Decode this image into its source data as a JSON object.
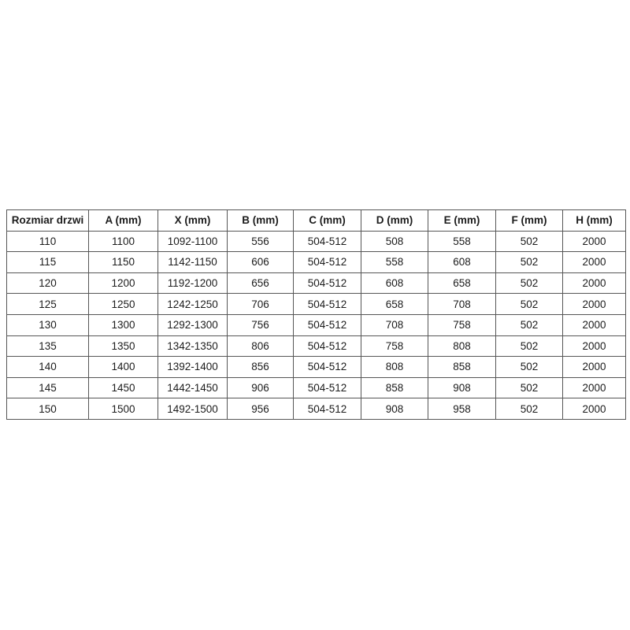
{
  "chart_data": {
    "type": "table",
    "title": "",
    "headers": [
      "Rozmiar drzwi",
      "A (mm)",
      "X (mm)",
      "B (mm)",
      "C (mm)",
      "D (mm)",
      "E (mm)",
      "F (mm)",
      "H (mm)"
    ],
    "rows": [
      [
        "110",
        "1100",
        "1092-1100",
        "556",
        "504-512",
        "508",
        "558",
        "502",
        "2000"
      ],
      [
        "115",
        "1150",
        "1142-1150",
        "606",
        "504-512",
        "558",
        "608",
        "502",
        "2000"
      ],
      [
        "120",
        "1200",
        "1192-1200",
        "656",
        "504-512",
        "608",
        "658",
        "502",
        "2000"
      ],
      [
        "125",
        "1250",
        "1242-1250",
        "706",
        "504-512",
        "658",
        "708",
        "502",
        "2000"
      ],
      [
        "130",
        "1300",
        "1292-1300",
        "756",
        "504-512",
        "708",
        "758",
        "502",
        "2000"
      ],
      [
        "135",
        "1350",
        "1342-1350",
        "806",
        "504-512",
        "758",
        "808",
        "502",
        "2000"
      ],
      [
        "140",
        "1400",
        "1392-1400",
        "856",
        "504-512",
        "808",
        "858",
        "502",
        "2000"
      ],
      [
        "145",
        "1450",
        "1442-1450",
        "906",
        "504-512",
        "858",
        "908",
        "502",
        "2000"
      ],
      [
        "150",
        "1500",
        "1492-1500",
        "956",
        "504-512",
        "908",
        "958",
        "502",
        "2000"
      ]
    ],
    "layout": {
      "grid": "all-borders",
      "header_style": "bold",
      "cell_alignment": "center",
      "border_color_hex": "#565656",
      "background_hex": "#ffffff",
      "text_color_hex": "#1c1c1c"
    }
  }
}
